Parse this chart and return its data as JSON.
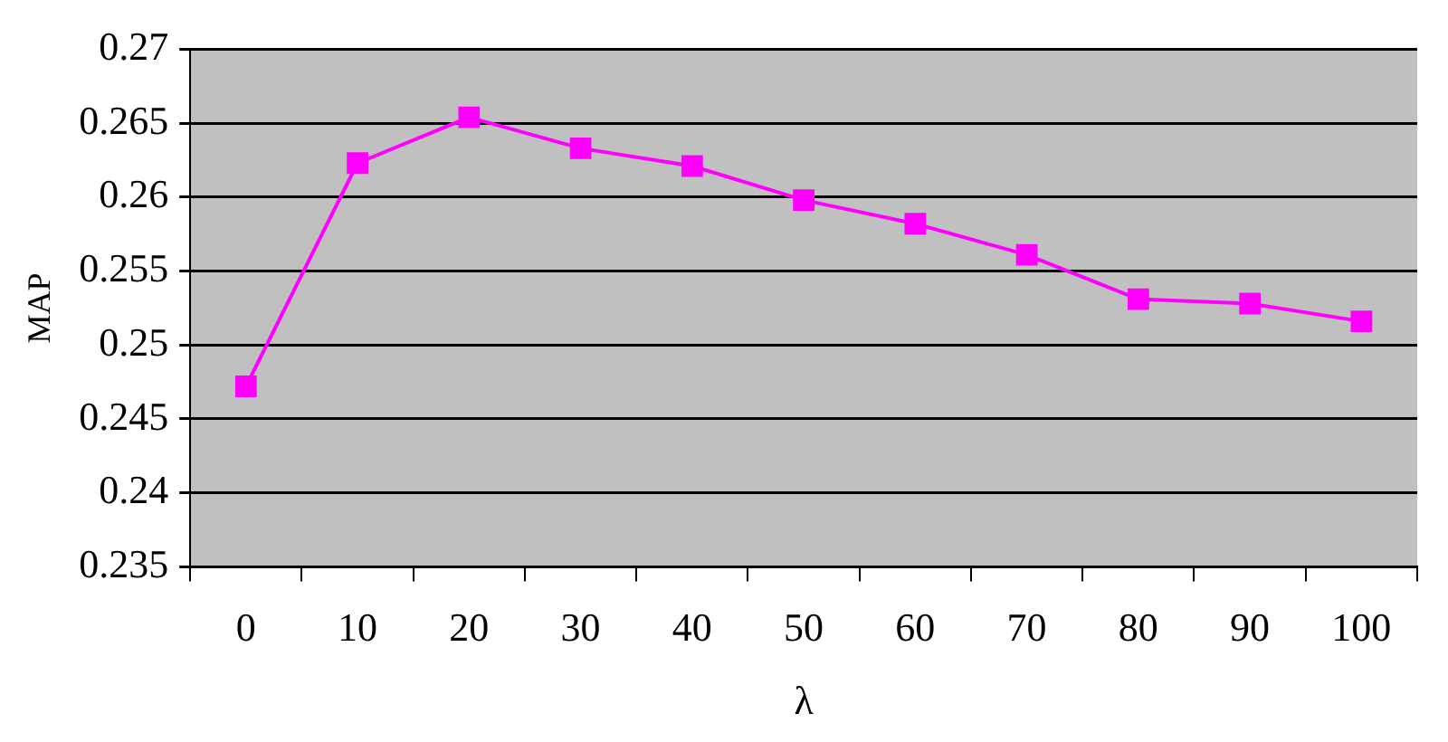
{
  "chart_data": {
    "type": "line",
    "xlabel": "λ",
    "ylabel": "MAP",
    "categories": [
      "0",
      "10",
      "20",
      "30",
      "40",
      "50",
      "60",
      "70",
      "80",
      "90",
      "100"
    ],
    "series": [
      {
        "color": "#ff00ff",
        "values": [
          0.2472,
          0.2623,
          0.2654,
          0.2633,
          0.2621,
          0.2598,
          0.2582,
          0.2561,
          0.2531,
          0.2528,
          0.2516
        ]
      }
    ],
    "ylim": [
      0.235,
      0.27
    ],
    "yticks": [
      0.235,
      0.24,
      0.245,
      0.25,
      0.255,
      0.26,
      0.265,
      0.27
    ],
    "grid": "y",
    "legend": false,
    "marker": "square",
    "line_style": "solid"
  }
}
